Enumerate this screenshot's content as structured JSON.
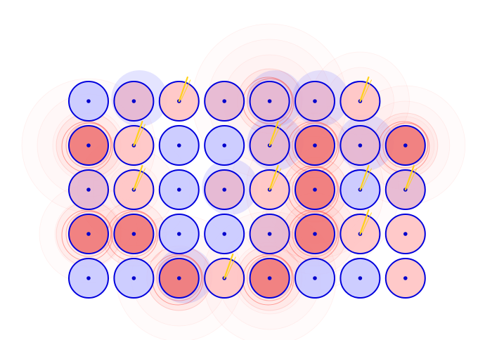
{
  "colors": {
    "background": "#ffffff",
    "ring": "#0000dd",
    "dot": "#0000cc",
    "blue_fill": "#c9c9ff",
    "pink_fill": "#ffc4c4",
    "red_fill": "#f07878",
    "mix_fill": "#e6b6d0",
    "halo_red": "#ff3b2f",
    "halo_blue": "#9d9dff",
    "spark": "#ffd21a"
  },
  "grid": {
    "rows": 5,
    "cols": 8,
    "cells": [
      [
        "blue",
        "mix",
        "pink",
        "mix",
        "mix",
        "mix",
        "pink",
        null
      ],
      [
        "red",
        "pink",
        "blue",
        "blue",
        "mix",
        "red",
        "mix",
        "red"
      ],
      [
        "mix",
        "pink",
        "blue",
        "mix",
        "pink",
        "red",
        "blue",
        "mix"
      ],
      [
        "red",
        "red",
        "blue",
        "blue",
        "mix",
        "red",
        "pink",
        "pink"
      ],
      [
        "blue",
        "blue",
        "red",
        "pink",
        "red",
        "blue",
        "blue",
        "pink"
      ]
    ],
    "sparks": [
      [
        0,
        2
      ],
      [
        0,
        6
      ],
      [
        1,
        1
      ],
      [
        1,
        4
      ],
      [
        2,
        1
      ],
      [
        2,
        4
      ],
      [
        2,
        6
      ],
      [
        2,
        7
      ],
      [
        3,
        6
      ],
      [
        4,
        3
      ]
    ],
    "blue_glow": [
      [
        0,
        1
      ],
      [
        0,
        4
      ],
      [
        0,
        5
      ],
      [
        1,
        4
      ],
      [
        1,
        6
      ],
      [
        2,
        3
      ],
      [
        4,
        2
      ]
    ],
    "red_halo": [
      [
        0,
        4
      ],
      [
        1,
        0
      ],
      [
        1,
        5
      ],
      [
        1,
        7
      ],
      [
        2,
        5
      ],
      [
        3,
        0
      ],
      [
        3,
        1
      ],
      [
        3,
        5
      ],
      [
        4,
        2
      ],
      [
        4,
        4
      ]
    ]
  }
}
